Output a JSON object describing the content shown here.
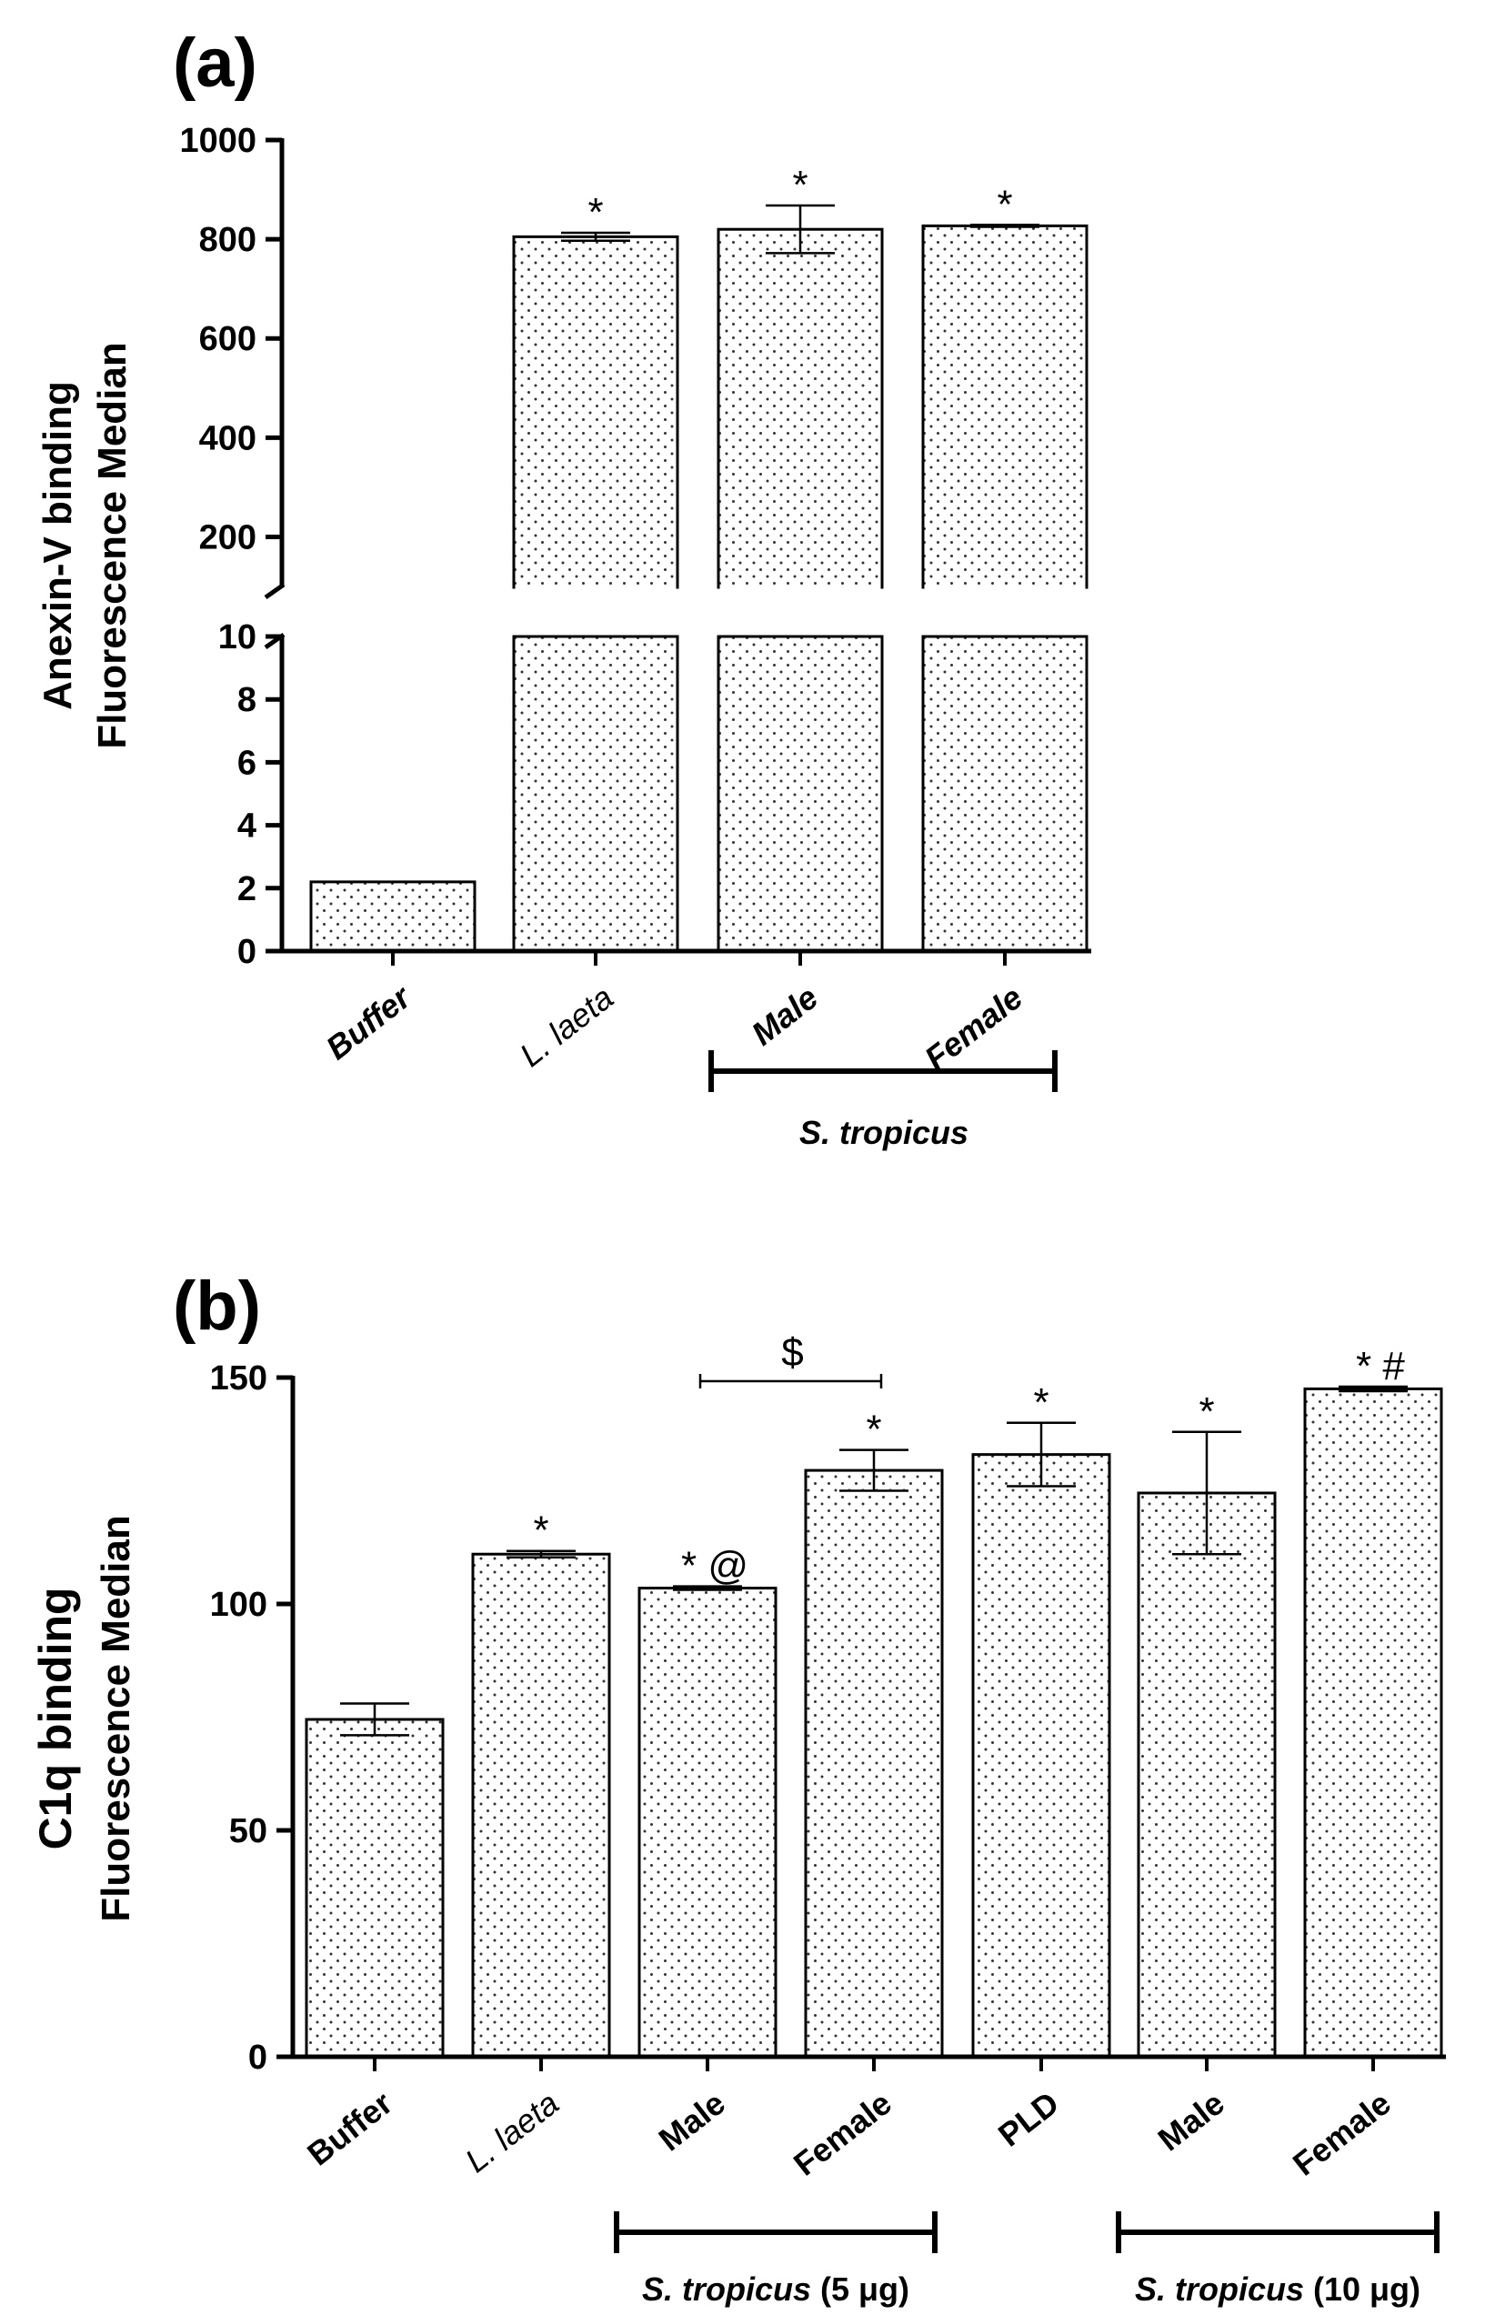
{
  "chart_data": [
    {
      "type": "bar",
      "panel_label": "(a)",
      "ylabel_lines": [
        "Anexin-V binding",
        "Fluorescence Median"
      ],
      "broken_axis": true,
      "ylim_lower": [
        0,
        10
      ],
      "ylim_upper": [
        100,
        1000
      ],
      "yticks_lower": [
        "0",
        "2",
        "4",
        "6",
        "8",
        "10"
      ],
      "yticks_upper": [
        "200",
        "400",
        "600",
        "800",
        "1000"
      ],
      "categories": [
        "Buffer",
        "L. laeta",
        "Male",
        "Female"
      ],
      "values": [
        2.2,
        805,
        820,
        827
      ],
      "errors": [
        0,
        8,
        48,
        2
      ],
      "annotations": [
        "",
        "*",
        "*",
        "*"
      ],
      "groups": [
        {
          "label": "S. tropicus",
          "members": [
            "Male",
            "Female"
          ]
        }
      ]
    },
    {
      "type": "bar",
      "panel_label": "(b)",
      "ylabel_lines": [
        "C1q binding",
        "Fluorescence Median"
      ],
      "ylim": [
        0,
        150
      ],
      "yticks": [
        "0",
        "50",
        "100",
        "150"
      ],
      "categories": [
        "Buffer",
        "L. laeta",
        "Male",
        "Female",
        "PLD",
        "Male",
        "Female"
      ],
      "values": [
        74.5,
        111,
        103.5,
        129.5,
        133,
        124.5,
        147.5
      ],
      "errors": [
        3.5,
        0.7,
        0.4,
        4.5,
        7,
        13.5,
        0.5
      ],
      "annotations": [
        "",
        "*",
        "* @",
        "*",
        "*",
        "*",
        "* #"
      ],
      "bracket": {
        "label": "$",
        "from": 2,
        "to": 3
      },
      "groups": [
        {
          "label": "S. tropicus (5 μg)",
          "members": [
            "Male",
            "Female"
          ]
        },
        {
          "label": "S. tropicus (10 μg)",
          "members": [
            "Male",
            "Female"
          ]
        }
      ]
    }
  ]
}
